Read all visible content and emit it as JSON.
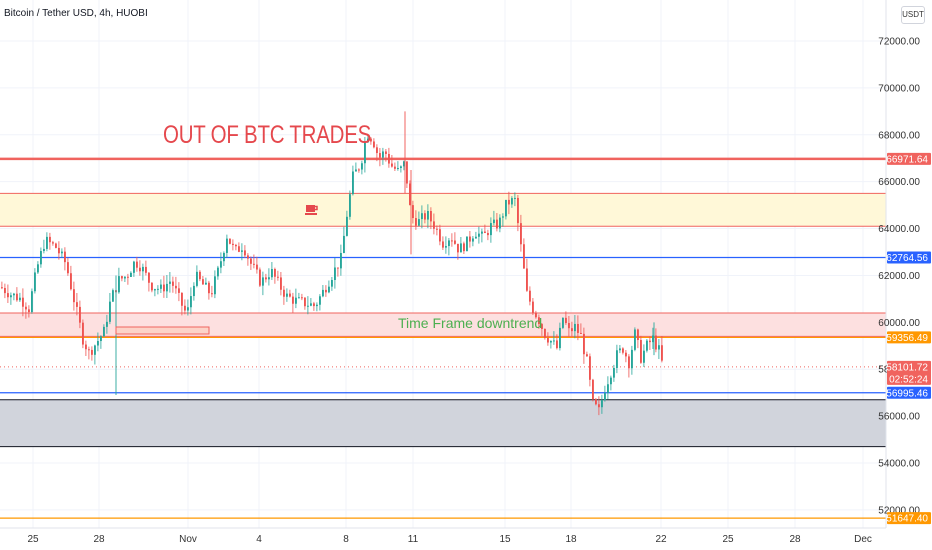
{
  "header": {
    "title": "Bitcoin / Tether USD, 4h, HUOBI",
    "currency_button": "USDT"
  },
  "annotations": {
    "main_text": "OUT OF BTC TRADES",
    "sub_text": "Time Frame downtrend",
    "coffee_icon": "coffee-cup-icon"
  },
  "colors": {
    "up_candle": "#26a69a",
    "down_candle": "#ef5350",
    "red_line": "#f0635e",
    "blue_line": "#2962ff",
    "orange_line": "#ff9800",
    "yellow_zone": "#fff8d8",
    "pink_zone": "#fde0e0",
    "grey_zone": "#d1d4dc"
  },
  "chart_data": {
    "type": "candlestick",
    "symbol": "Bitcoin / Tether USD",
    "interval": "4h",
    "exchange": "HUOBI",
    "y_ticks": [
      52000,
      54000,
      56000,
      58000,
      60000,
      62000,
      64000,
      66000,
      68000,
      70000,
      72000
    ],
    "x_ticks": [
      "25",
      "28",
      "Nov",
      "4",
      "8",
      "11",
      "15",
      "18",
      "22",
      "25",
      "28",
      "Dec"
    ],
    "ylim": [
      51000,
      73500
    ],
    "grid": true,
    "horizontal_lines": [
      {
        "price": 66971.64,
        "label": "66971.64",
        "color": "red"
      },
      {
        "price": 62764.56,
        "label": "62764.56",
        "color": "blue"
      },
      {
        "price": 59356.49,
        "label": "59356.49",
        "color": "orange"
      },
      {
        "price": 58101.72,
        "label": "58101.72",
        "countdown": "02:52:24",
        "color": "red",
        "style": "dotted"
      },
      {
        "price": 56995.46,
        "label": "56995.46",
        "color": "blue"
      },
      {
        "price": 51647.4,
        "label": "51647.40",
        "color": "orange"
      }
    ],
    "zones": [
      {
        "from": 64100,
        "to": 65500,
        "color": "yellow"
      },
      {
        "from": 59400,
        "to": 60400,
        "color": "pink"
      },
      {
        "from": 54700,
        "to": 56700,
        "color": "grey"
      }
    ],
    "close_path": [
      [
        0,
        61500
      ],
      [
        10,
        61200
      ],
      [
        20,
        61000
      ],
      [
        28,
        60600
      ],
      [
        36,
        62300
      ],
      [
        44,
        63500
      ],
      [
        55,
        63200
      ],
      [
        65,
        62500
      ],
      [
        75,
        60600
      ],
      [
        82,
        59300
      ],
      [
        88,
        58700
      ],
      [
        95,
        59100
      ],
      [
        103,
        59600
      ],
      [
        110,
        61000
      ],
      [
        118,
        61800
      ],
      [
        126,
        62000
      ],
      [
        134,
        62600
      ],
      [
        140,
        62400
      ],
      [
        150,
        61600
      ],
      [
        160,
        61400
      ],
      [
        170,
        61800
      ],
      [
        178,
        61000
      ],
      [
        186,
        60300
      ],
      [
        194,
        62000
      ],
      [
        202,
        61600
      ],
      [
        210,
        61200
      ],
      [
        218,
        62300
      ],
      [
        226,
        63700
      ],
      [
        234,
        63000
      ],
      [
        242,
        63300
      ],
      [
        250,
        62500
      ],
      [
        260,
        61700
      ],
      [
        270,
        62200
      ],
      [
        278,
        61600
      ],
      [
        286,
        61100
      ],
      [
        296,
        60900
      ],
      [
        306,
        60800
      ],
      [
        314,
        60700
      ],
      [
        322,
        61300
      ],
      [
        332,
        62100
      ],
      [
        340,
        62700
      ],
      [
        346,
        64600
      ],
      [
        352,
        66200
      ],
      [
        360,
        66800
      ],
      [
        366,
        68100
      ],
      [
        372,
        67800
      ],
      [
        378,
        67000
      ],
      [
        384,
        67300
      ],
      [
        390,
        66700
      ],
      [
        398,
        66400
      ],
      [
        404,
        66800
      ],
      [
        410,
        64500
      ],
      [
        418,
        64300
      ],
      [
        426,
        64600
      ],
      [
        434,
        64100
      ],
      [
        442,
        63400
      ],
      [
        450,
        63700
      ],
      [
        458,
        63100
      ],
      [
        466,
        63400
      ],
      [
        474,
        63900
      ],
      [
        482,
        63600
      ],
      [
        490,
        64100
      ],
      [
        498,
        64200
      ],
      [
        506,
        65100
      ],
      [
        514,
        65200
      ],
      [
        520,
        63200
      ],
      [
        526,
        61200
      ],
      [
        532,
        60600
      ],
      [
        538,
        60100
      ],
      [
        544,
        59500
      ],
      [
        550,
        59200
      ],
      [
        556,
        58900
      ],
      [
        562,
        60200
      ],
      [
        568,
        59600
      ],
      [
        574,
        59800
      ],
      [
        580,
        59400
      ],
      [
        586,
        58300
      ],
      [
        592,
        56500
      ],
      [
        598,
        56200
      ],
      [
        604,
        57200
      ],
      [
        610,
        57900
      ],
      [
        616,
        58600
      ],
      [
        622,
        58900
      ],
      [
        628,
        58300
      ],
      [
        634,
        59500
      ],
      [
        640,
        58500
      ],
      [
        646,
        59000
      ],
      [
        652,
        59300
      ],
      [
        658,
        58800
      ],
      [
        662,
        58100
      ]
    ]
  }
}
